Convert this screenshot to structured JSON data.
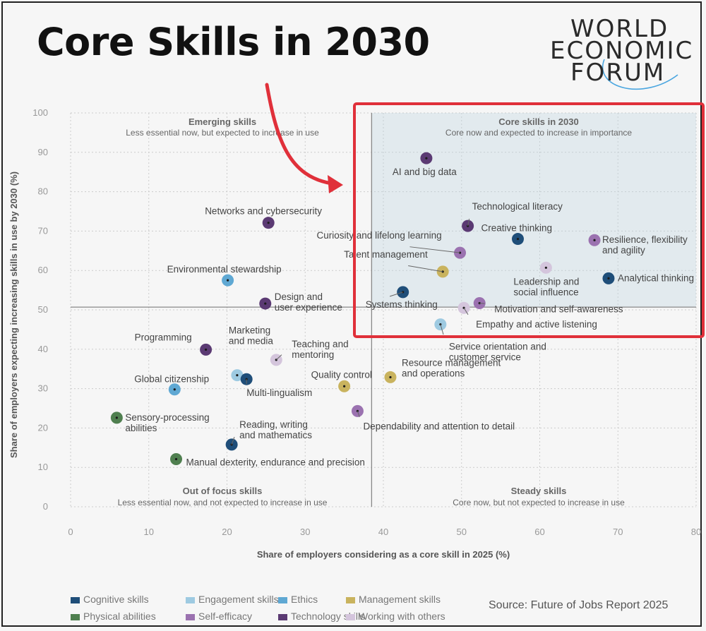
{
  "headline": "Core Skills in 2030",
  "logo": [
    "WORLD",
    "ECONOMIC",
    "FORUM"
  ],
  "source": "Source: Future of Jobs Report 2025",
  "colors": {
    "cognitive": "#1f4e79",
    "engagement": "#9ecae1",
    "ethics": "#5fa8d3",
    "management": "#c9b35e",
    "physical": "#4f7f4f",
    "self_efficacy": "#9b72b0",
    "technology": "#5b3a73",
    "working_with_others": "#d4c5dc",
    "highlight": "#e0303a"
  },
  "chart_data": {
    "type": "scatter",
    "xlabel": "Share of employers considering as a core skill in 2025 (%)",
    "ylabel": "Share of employers expecting increasing skills in use by 2030 (%)",
    "xlim": [
      0,
      80
    ],
    "ylim": [
      0,
      100
    ],
    "xticks": [
      0,
      10,
      20,
      30,
      40,
      50,
      60,
      70,
      80
    ],
    "yticks": [
      0,
      10,
      20,
      30,
      40,
      50,
      60,
      70,
      80,
      90,
      100
    ],
    "grid": true,
    "divider": {
      "x": 38.5,
      "y": 50.7
    },
    "quadrants": [
      {
        "title": "Emerging skills",
        "subtitle": "Less essential now, but expected to increase in use"
      },
      {
        "title": "Core skills in 2030",
        "subtitle": "Core now and expected to increase in importance"
      },
      {
        "title": "Out of focus skills",
        "subtitle": "Less essential now, and not expected to increase in use"
      },
      {
        "title": "Steady skills",
        "subtitle": "Core now, but not expected to increase in use"
      }
    ],
    "legend_entries": [
      {
        "key": "cognitive",
        "label": "Cognitive skills"
      },
      {
        "key": "engagement",
        "label": "Engagement skills"
      },
      {
        "key": "ethics",
        "label": "Ethics"
      },
      {
        "key": "management",
        "label": "Management skills"
      },
      {
        "key": "physical",
        "label": "Physical abilities"
      },
      {
        "key": "self_efficacy",
        "label": "Self-efficacy"
      },
      {
        "key": "technology",
        "label": "Technology skills"
      },
      {
        "key": "working_with_others",
        "label": "Working with others"
      }
    ],
    "points": [
      {
        "label": "AI and big data",
        "x": 45.5,
        "y": 88.5,
        "cat": "technology"
      },
      {
        "label": "Technological literacy",
        "x": 50.8,
        "y": 71.3,
        "cat": "technology"
      },
      {
        "label": "Creative thinking",
        "x": 57.2,
        "y": 68.0,
        "cat": "cognitive"
      },
      {
        "label": "Resilience, flexibility and agility",
        "x": 67.0,
        "y": 67.7,
        "cat": "self_efficacy"
      },
      {
        "label": "Curiosity and lifelong learning",
        "x": 49.8,
        "y": 64.5,
        "cat": "self_efficacy"
      },
      {
        "label": "Talent management",
        "x": 47.6,
        "y": 59.7,
        "cat": "management"
      },
      {
        "label": "Leadership and social influence",
        "x": 60.8,
        "y": 60.7,
        "cat": "working_with_others"
      },
      {
        "label": "Analytical thinking",
        "x": 68.8,
        "y": 58.0,
        "cat": "cognitive"
      },
      {
        "label": "Systems thinking",
        "x": 42.5,
        "y": 54.5,
        "cat": "cognitive"
      },
      {
        "label": "Motivation and self-awareness",
        "x": 52.3,
        "y": 51.7,
        "cat": "self_efficacy"
      },
      {
        "label": "Empathy and active listening",
        "x": 50.3,
        "y": 50.5,
        "cat": "working_with_others"
      },
      {
        "label": "Service orientation and customer service",
        "x": 47.3,
        "y": 46.3,
        "cat": "engagement"
      },
      {
        "label": "Networks and cybersecurity",
        "x": 25.3,
        "y": 72.1,
        "cat": "technology"
      },
      {
        "label": "Environmental stewardship",
        "x": 20.1,
        "y": 57.5,
        "cat": "ethics"
      },
      {
        "label": "Design and user experience",
        "x": 24.9,
        "y": 51.6,
        "cat": "technology"
      },
      {
        "label": "Programming",
        "x": 17.3,
        "y": 39.9,
        "cat": "technology"
      },
      {
        "label": "Marketing and media",
        "x": 21.3,
        "y": 33.4,
        "cat": "engagement"
      },
      {
        "label": "Teaching and mentoring",
        "x": 26.3,
        "y": 37.3,
        "cat": "working_with_others"
      },
      {
        "label": "Global citizenship",
        "x": 13.3,
        "y": 29.8,
        "cat": "ethics"
      },
      {
        "label": "Multi-lingualism",
        "x": 22.5,
        "y": 32.4,
        "cat": "cognitive"
      },
      {
        "label": "Quality control",
        "x": 35.0,
        "y": 30.6,
        "cat": "management"
      },
      {
        "label": "Resource management and operations",
        "x": 40.9,
        "y": 32.9,
        "cat": "management"
      },
      {
        "label": "Sensory-processing abilities",
        "x": 5.9,
        "y": 22.6,
        "cat": "physical"
      },
      {
        "label": "Dependability and attention to detail",
        "x": 36.7,
        "y": 24.3,
        "cat": "self_efficacy"
      },
      {
        "label": "Reading, writing and mathematics",
        "x": 20.6,
        "y": 15.8,
        "cat": "cognitive"
      },
      {
        "label": "Manual dexterity, endurance and precision",
        "x": 13.5,
        "y": 12.1,
        "cat": "physical"
      }
    ]
  }
}
